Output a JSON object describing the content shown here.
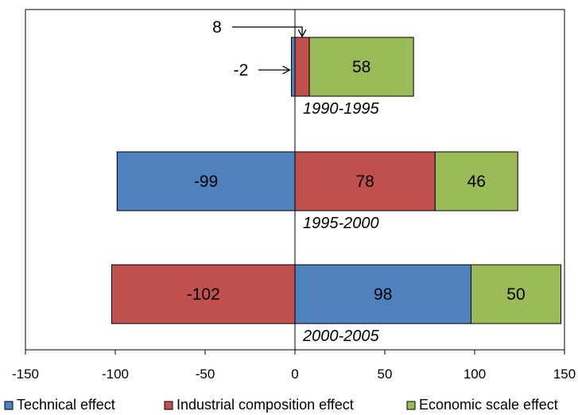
{
  "chart_data": {
    "type": "bar",
    "orientation": "horizontal",
    "stacked": true,
    "xlim": [
      -150,
      150
    ],
    "x_ticks": [
      -150,
      -100,
      -50,
      0,
      50,
      100,
      150
    ],
    "x_tick_labels": [
      "-150",
      "-100",
      "-50",
      "0",
      "50",
      "100",
      "150"
    ],
    "grid": false,
    "legend_position": "bottom",
    "series": [
      {
        "name": "Technical effect",
        "color": "#4f81bd"
      },
      {
        "name": "Industrial composition effect",
        "color": "#c0504d"
      },
      {
        "name": "Economic scale effect",
        "color": "#9bbb59"
      }
    ],
    "categories": [
      {
        "label": "1990-1995",
        "segments": [
          {
            "series": "Technical effect",
            "value": -2,
            "label": "-2",
            "label_style": "arrow"
          },
          {
            "series": "Industrial composition effect",
            "value": 8,
            "label": "8",
            "label_style": "arrow"
          },
          {
            "series": "Economic scale effect",
            "value": 58,
            "label": "58",
            "label_style": "inside"
          }
        ]
      },
      {
        "label": "1995-2000",
        "segments": [
          {
            "series": "Technical effect",
            "value": -99,
            "label": "-99",
            "label_style": "inside"
          },
          {
            "series": "Industrial composition effect",
            "value": 78,
            "label": "78",
            "label_style": "inside"
          },
          {
            "series": "Economic scale effect",
            "value": 46,
            "label": "46",
            "label_style": "inside"
          }
        ]
      },
      {
        "label": "2000-2005",
        "segments": [
          {
            "series": "Industrial composition effect",
            "value": -102,
            "label": "-102",
            "label_style": "inside"
          },
          {
            "series": "Technical effect",
            "value": 98,
            "label": "98",
            "label_style": "inside"
          },
          {
            "series": "Economic scale effect",
            "value": 50,
            "label": "50",
            "label_style": "inside"
          }
        ]
      }
    ]
  }
}
